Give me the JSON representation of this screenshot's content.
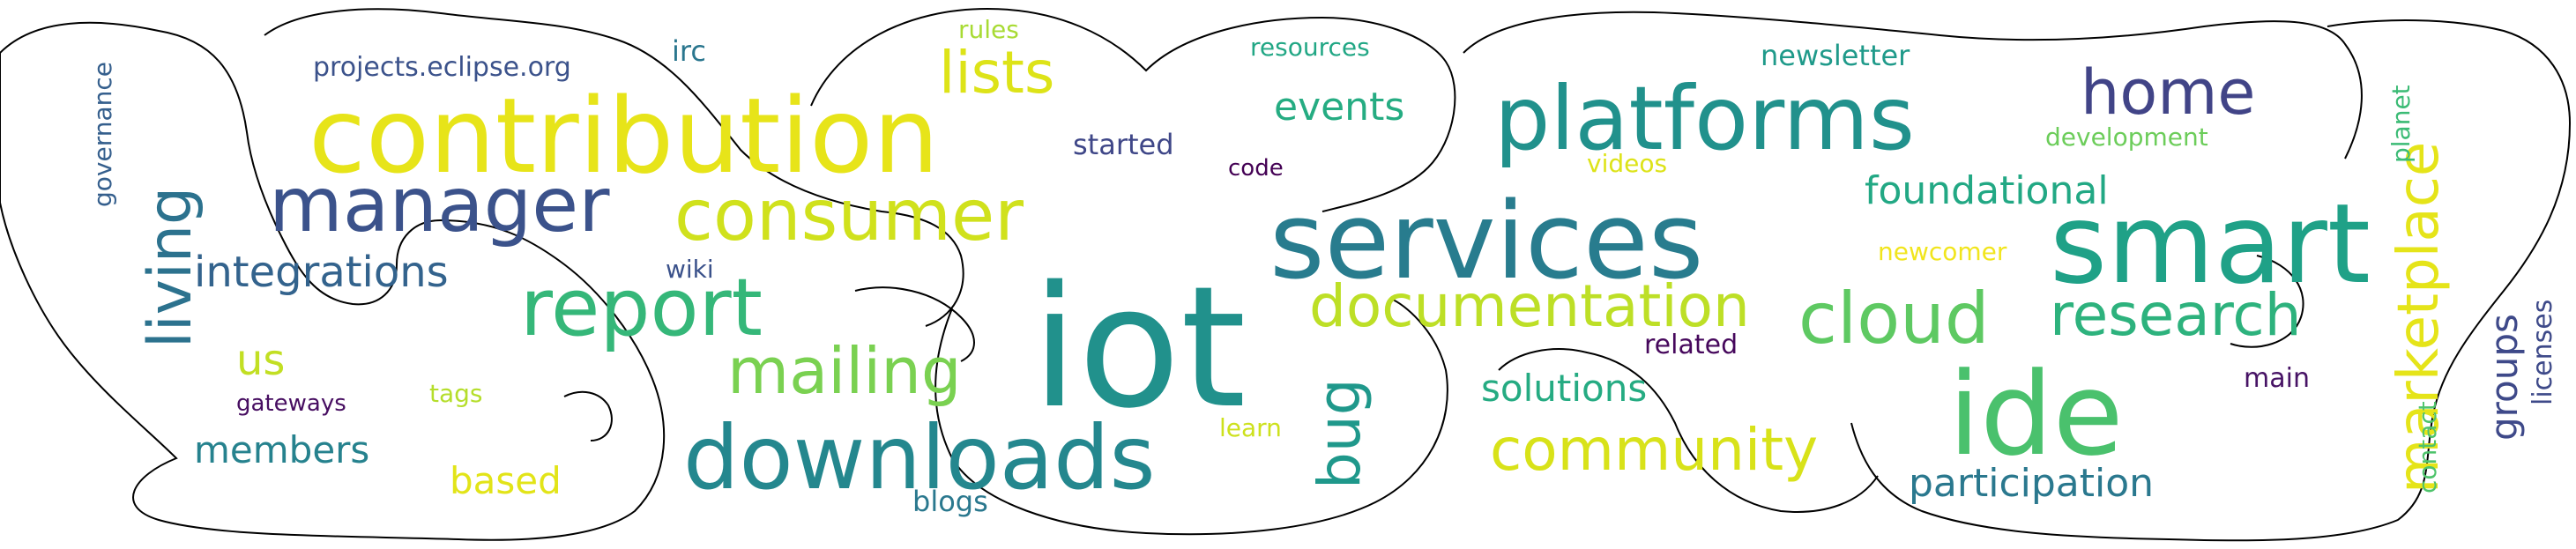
{
  "palette": {
    "dark_purple": "#440154",
    "indigo": "#3b528b",
    "blue": "#31688e",
    "teal": "#21918c",
    "green_teal": "#1fa187",
    "green": "#35b779",
    "light_green": "#90d743",
    "yellow_green": "#c8e020",
    "yellow": "#fde725",
    "navy": "#3e4989"
  },
  "words": [
    {
      "text": "iot",
      "color": "#21918c"
    },
    {
      "text": "contribution",
      "color": "#e7e419"
    },
    {
      "text": "services",
      "color": "#287c8e"
    },
    {
      "text": "smart",
      "color": "#1fa187"
    },
    {
      "text": "platforms",
      "color": "#21918c"
    },
    {
      "text": "ide",
      "color": "#4ac16d"
    },
    {
      "text": "downloads",
      "color": "#24878e"
    },
    {
      "text": "manager",
      "color": "#3b528b"
    },
    {
      "text": "consumer",
      "color": "#d0e11c"
    },
    {
      "text": "report",
      "color": "#35b779"
    },
    {
      "text": "documentation",
      "color": "#bddf26"
    },
    {
      "text": "cloud",
      "color": "#5ec962"
    },
    {
      "text": "research",
      "color": "#2db27d"
    },
    {
      "text": "community",
      "color": "#d8e219"
    },
    {
      "text": "marketplace",
      "color": "#e5e419"
    },
    {
      "text": "mailing",
      "color": "#2c728e"
    },
    {
      "text": "living",
      "color": "#7ad151"
    },
    {
      "text": "lists",
      "color": "#dde318"
    },
    {
      "text": "home",
      "color": "#414487"
    },
    {
      "text": "integrations",
      "color": "#33638d"
    },
    {
      "text": "foundational",
      "color": "#22a884"
    },
    {
      "text": "bug",
      "color": "#1f988b"
    },
    {
      "text": "events",
      "color": "#25ac82"
    },
    {
      "text": "solutions",
      "color": "#25ab82"
    },
    {
      "text": "participation",
      "color": "#2a788e"
    },
    {
      "text": "members",
      "color": "#26828e"
    },
    {
      "text": "groups",
      "color": "#3e4989"
    },
    {
      "text": "us",
      "color": "#c2df23"
    },
    {
      "text": "based",
      "color": "#e2e418"
    },
    {
      "text": "projects.eclipse.org",
      "color": "#3b528b"
    },
    {
      "text": "newsletter",
      "color": "#1f9a8a"
    },
    {
      "text": "started",
      "color": "#3f4788"
    },
    {
      "text": "blogs",
      "color": "#2a788e"
    },
    {
      "text": "resources",
      "color": "#22a785"
    },
    {
      "text": "videos",
      "color": "#dde318"
    },
    {
      "text": "development",
      "color": "#6ccd5a"
    },
    {
      "text": "planet",
      "color": "#3bbb75"
    },
    {
      "text": "contact",
      "color": "#4ec36b"
    },
    {
      "text": "licenses",
      "color": "#3e4a89"
    },
    {
      "text": "governance",
      "color": "#355f8d"
    },
    {
      "text": "irc",
      "color": "#2a768e"
    },
    {
      "text": "rules",
      "color": "#a8db34"
    },
    {
      "text": "related",
      "color": "#46085c"
    },
    {
      "text": "newcomer",
      "color": "#f1e51d"
    },
    {
      "text": "main",
      "color": "#471365"
    },
    {
      "text": "code",
      "color": "#440154"
    },
    {
      "text": "wiki",
      "color": "#3b528b"
    },
    {
      "text": "tags",
      "color": "#b5de2b"
    },
    {
      "text": "learn",
      "color": "#cde11d"
    },
    {
      "text": "gateways",
      "color": "#470e61"
    }
  ]
}
